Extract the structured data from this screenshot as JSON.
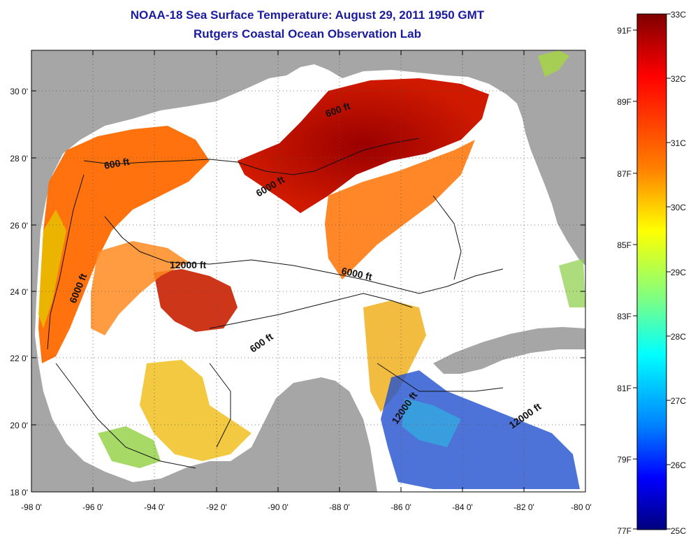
{
  "header": {
    "title_line1": "NOAA-18 Sea Surface Temperature:  August 29, 2011 1950 GMT",
    "title_line2": "Rutgers Coastal Ocean Observation Lab"
  },
  "map": {
    "region": "Gulf of Mexico",
    "lon_range": [
      -98,
      -80
    ],
    "lat_range": [
      18,
      31
    ],
    "lon_ticks": [
      "-98 0'",
      "-96 0'",
      "-94 0'",
      "-92 0'",
      "-90 0'",
      "-88 0'",
      "-86 0'",
      "-84 0'",
      "-82 0'",
      "-80 0'"
    ],
    "lat_ticks": [
      "18 0'",
      "20 0'",
      "22 0'",
      "24 0'",
      "26 0'",
      "28 0'",
      "30 0'"
    ],
    "contour_labels": [
      "600 ft",
      "600 ft",
      "6000 ft",
      "12000 ft",
      "6000 ft",
      "6000 ft",
      "600 ft",
      "12000 ft",
      "12000 ft"
    ],
    "colors": {
      "land": "#a6a6a6",
      "no_data": "#ffffff",
      "hot": "#8b0000",
      "warm": "#ff6a00",
      "mid": "#f0d000",
      "cool": "#00c0e0",
      "cold": "#0020c0"
    }
  },
  "colorbar": {
    "celsius_ticks": [
      "33C",
      "32C",
      "31C",
      "30C",
      "29C",
      "28C",
      "27C",
      "26C",
      "25C"
    ],
    "fahrenheit_ticks": [
      "91F",
      "89F",
      "87F",
      "85F",
      "83F",
      "81F",
      "79F",
      "77F"
    ],
    "range_celsius": [
      25,
      33
    ],
    "range_fahrenheit": [
      77,
      91.4
    ]
  }
}
